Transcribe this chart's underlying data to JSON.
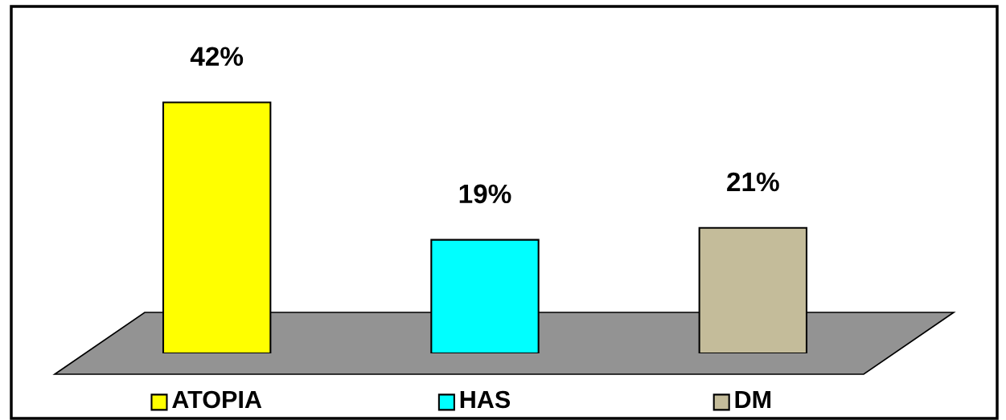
{
  "chart_data": {
    "type": "bar",
    "categories": [
      "ATOPIA",
      "HAS",
      "DM"
    ],
    "values": [
      42,
      19,
      21
    ],
    "colors": [
      "#ffff00",
      "#00ffff",
      "#c4bc9a"
    ],
    "value_labels": [
      "42%",
      "19%",
      "21%"
    ],
    "grid": false,
    "tick_labels": "x"
  }
}
